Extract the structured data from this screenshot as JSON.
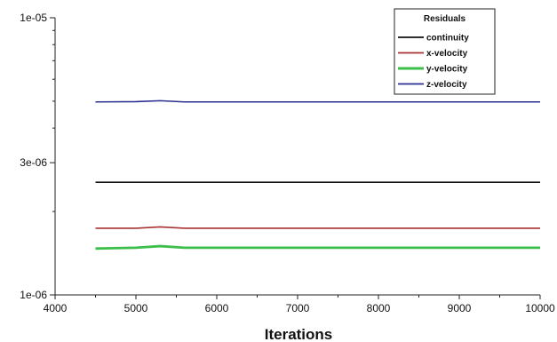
{
  "chart_data": {
    "type": "line",
    "title": "",
    "xlabel": "Iterations",
    "ylabel": "",
    "xlim": [
      4000,
      10000
    ],
    "ylim": [
      1e-06,
      1e-05
    ],
    "y_scale": "log",
    "grid": false,
    "legend_placement": "top-right",
    "legend_title": "Residuals",
    "x_ticks": [
      4000,
      5000,
      6000,
      7000,
      8000,
      9000,
      10000
    ],
    "x_tick_labels": [
      "4000",
      "5000",
      "6000",
      "7000",
      "8000",
      "9000",
      "10000"
    ],
    "y_ticks": [
      1e-06,
      3e-06,
      1e-05
    ],
    "y_tick_labels": [
      "1e-06",
      "3e-06",
      "1e-05"
    ],
    "series": [
      {
        "name": "continuity",
        "color": "#111111",
        "x": [
          4500,
          10000
        ],
        "values": [
          2.55e-06,
          2.55e-06
        ]
      },
      {
        "name": "x-velocity",
        "color": "#a83232",
        "x": [
          4500,
          5000,
          5300,
          5600,
          10000
        ],
        "values": [
          1.74e-06,
          1.74e-06,
          1.76e-06,
          1.74e-06,
          1.74e-06
        ]
      },
      {
        "name": "y-velocity",
        "color": "#3cbf4a",
        "x": [
          4500,
          5000,
          5300,
          5600,
          10000
        ],
        "values": [
          1.47e-06,
          1.48e-06,
          1.5e-06,
          1.48e-06,
          1.48e-06
        ]
      },
      {
        "name": "z-velocity",
        "color": "#2a2f8f",
        "x": [
          4500,
          5000,
          5300,
          5600,
          10000
        ],
        "values": [
          4.97e-06,
          4.98e-06,
          5.02e-06,
          4.97e-06,
          4.97e-06
        ]
      }
    ]
  }
}
